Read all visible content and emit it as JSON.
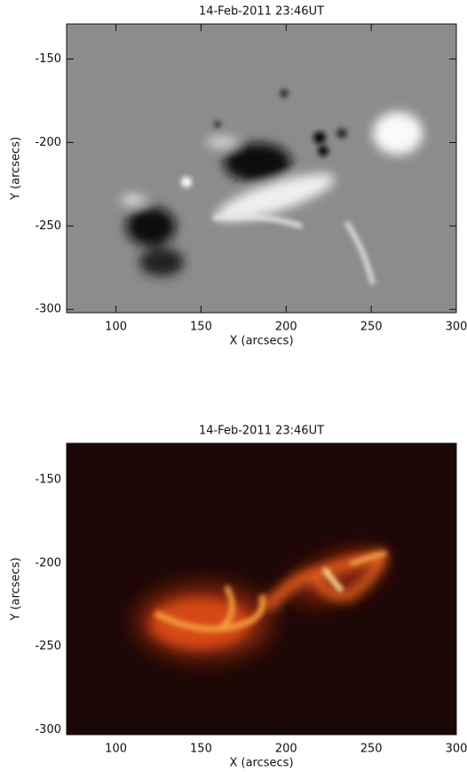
{
  "chart_data": [
    {
      "type": "image",
      "title": "14-Feb-2011 23:46UT",
      "xlabel": "X (arcsecs)",
      "ylabel": "Y (arcsecs)",
      "xlim": [
        71,
        300
      ],
      "ylim": [
        -302,
        -129
      ],
      "xticks": [
        100,
        150,
        200,
        250,
        300
      ],
      "yticks": [
        -150,
        -200,
        -250,
        -300
      ]
    },
    {
      "type": "image",
      "title": "14-Feb-2011 23:46UT",
      "xlabel": "X (arcsecs)",
      "ylabel": "Y (arcsecs)",
      "xlim": [
        71,
        300
      ],
      "ylim": [
        -303,
        -128
      ],
      "xticks": [
        100,
        150,
        200,
        250,
        300
      ],
      "yticks": [
        -150,
        -200,
        -250,
        -300
      ]
    }
  ]
}
